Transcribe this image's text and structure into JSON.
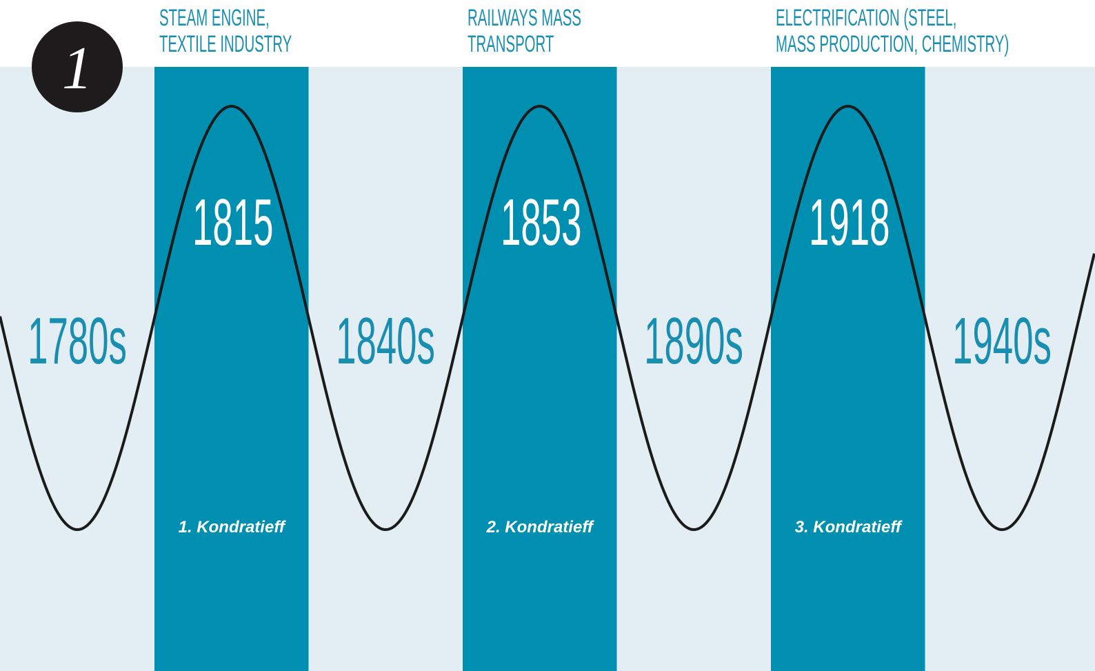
{
  "badge": "1",
  "waves": [
    {
      "topic": [
        "STEAM ENGINE,",
        "TEXTILE INDUSTRY"
      ],
      "peak": "1815",
      "name": "1. Kondratieff"
    },
    {
      "topic": [
        "RAILWAYS MASS",
        "TRANSPORT"
      ],
      "peak": "1853",
      "name": "2. Kondratieff"
    },
    {
      "topic": [
        "ELECTRIFICATION (STEEL,",
        "MASS PRODUCTION, CHEMISTRY)"
      ],
      "peak": "1918",
      "name": "3. Kondratieff"
    }
  ],
  "decades": [
    "1780s",
    "1840s",
    "1890s",
    "1940s"
  ]
}
